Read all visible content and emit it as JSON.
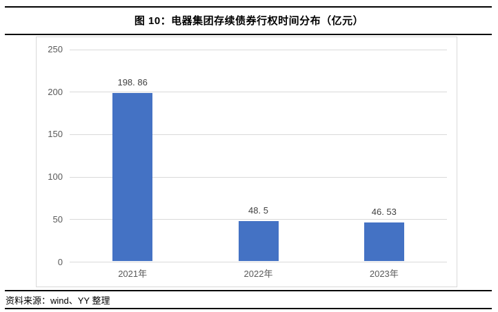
{
  "page": {
    "title": "图 10：电器集团存续债券行权时间分布（亿元）",
    "source": "资料来源：wind、YY 整理"
  },
  "chart_data": {
    "type": "bar",
    "title": "图 10：电器集团存续债券行权时间分布（亿元）",
    "categories": [
      "2021年",
      "2022年",
      "2023年"
    ],
    "values": [
      198.86,
      48.5,
      46.53
    ],
    "value_labels": [
      "198. 86",
      "48. 5",
      "46. 53"
    ],
    "xlabel": "",
    "ylabel": "",
    "y_ticks": [
      0,
      50,
      100,
      150,
      200,
      250
    ],
    "ylim": [
      0,
      250
    ],
    "grid": true,
    "legend": false,
    "bar_color": "#4472C4",
    "gridline_color": "#d9d9d9",
    "frame_border_color": "#d9d9d9",
    "axis_text_color": "#595959",
    "value_label_color": "#3f3f3f"
  }
}
